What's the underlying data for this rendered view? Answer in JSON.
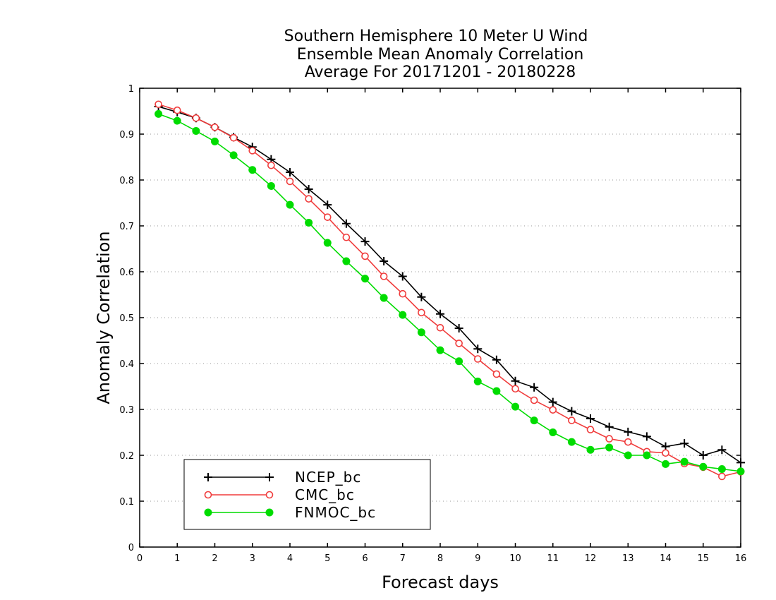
{
  "chart_data": {
    "type": "line",
    "title": [
      "Southern Hemisphere 10 Meter U Wind",
      "Ensemble Mean Anomaly Correlation",
      "Average For 20171201 - 20180228"
    ],
    "xlabel": "Forecast days",
    "ylabel": "Anomaly Correlation",
    "xlim": [
      0,
      16
    ],
    "ylim": [
      0,
      1
    ],
    "xticks": [
      "0",
      "1",
      "2",
      "3",
      "4",
      "5",
      "6",
      "7",
      "8",
      "9",
      "10",
      "11",
      "12",
      "13",
      "14",
      "15",
      "16"
    ],
    "yticks": [
      "0",
      "0.1",
      "0.2",
      "0.3",
      "0.4",
      "0.5",
      "0.6",
      "0.7",
      "0.8",
      "0.9",
      "1"
    ],
    "grid": "horizontal dotted",
    "legend_position": "bottom-left",
    "x": [
      0.5,
      1,
      1.5,
      2,
      2.5,
      3,
      3.5,
      4,
      4.5,
      5,
      5.5,
      6,
      6.5,
      7,
      7.5,
      8,
      8.5,
      9,
      9.5,
      10,
      10.5,
      11,
      11.5,
      12,
      12.5,
      13,
      13.5,
      14,
      14.5,
      15,
      15.5,
      16
    ],
    "series": [
      {
        "name": "NCEP_bc",
        "color": "#000000",
        "marker": "plus",
        "values": [
          0.96,
          0.948,
          0.935,
          0.915,
          0.893,
          0.872,
          0.845,
          0.817,
          0.78,
          0.746,
          0.705,
          0.666,
          0.623,
          0.59,
          0.545,
          0.508,
          0.477,
          0.432,
          0.408,
          0.362,
          0.348,
          0.316,
          0.296,
          0.28,
          0.262,
          0.251,
          0.241,
          0.219,
          0.226,
          0.2,
          0.212,
          0.184
        ]
      },
      {
        "name": "CMC_bc",
        "color": "#f03c3c",
        "marker": "open-circle",
        "values": [
          0.965,
          0.952,
          0.935,
          0.915,
          0.892,
          0.864,
          0.832,
          0.797,
          0.759,
          0.719,
          0.675,
          0.634,
          0.59,
          0.552,
          0.511,
          0.478,
          0.444,
          0.41,
          0.377,
          0.345,
          0.32,
          0.299,
          0.276,
          0.256,
          0.236,
          0.229,
          0.208,
          0.205,
          0.182,
          0.174,
          0.154,
          0.164
        ]
      },
      {
        "name": "FNMOC_bc",
        "color": "#00dc00",
        "marker": "filled-circle",
        "values": [
          0.944,
          0.929,
          0.907,
          0.884,
          0.854,
          0.822,
          0.787,
          0.746,
          0.707,
          0.663,
          0.623,
          0.585,
          0.543,
          0.506,
          0.468,
          0.429,
          0.405,
          0.361,
          0.34,
          0.306,
          0.276,
          0.25,
          0.229,
          0.212,
          0.217,
          0.2,
          0.2,
          0.181,
          0.186,
          0.175,
          0.17,
          0.165
        ]
      }
    ]
  }
}
